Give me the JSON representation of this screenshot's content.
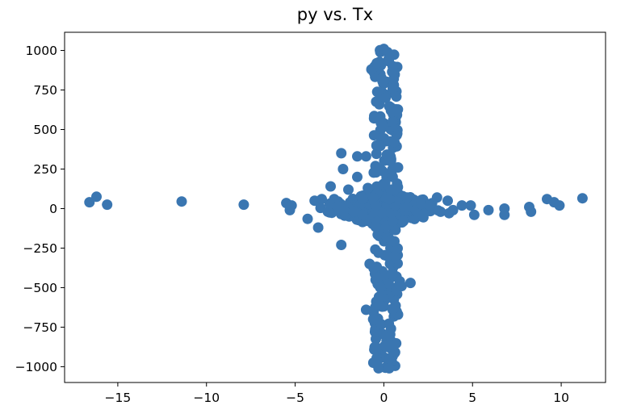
{
  "chart_data": {
    "type": "scatter",
    "title": "py vs. Tx",
    "xlabel": "",
    "ylabel": "",
    "xlim": [
      -18,
      12.5
    ],
    "ylim": [
      -1100,
      1115
    ],
    "x_ticks": [
      -15,
      -10,
      -5,
      0,
      5,
      10
    ],
    "x_tick_labels": [
      "−15",
      "−10",
      "−5",
      "0",
      "5",
      "10"
    ],
    "y_ticks": [
      1000,
      750,
      500,
      250,
      0,
      -250,
      -500,
      -750,
      -1000
    ],
    "y_tick_labels": [
      "1000",
      "750",
      "500",
      "250",
      "0",
      "−250",
      "−500",
      "−750",
      "−1000"
    ],
    "grid": false,
    "marker_color": "#3a76b1",
    "series": [
      {
        "points": [
          [
            -16.6,
            40
          ],
          [
            -16.2,
            75
          ],
          [
            -15.6,
            25
          ],
          [
            -11.4,
            45
          ],
          [
            -7.9,
            25
          ],
          [
            -5.5,
            35
          ],
          [
            -5.3,
            -10
          ],
          [
            -5.2,
            20
          ],
          [
            -4.3,
            -65
          ],
          [
            -3.9,
            50
          ],
          [
            -3.7,
            -120
          ],
          [
            -3.5,
            60
          ],
          [
            -3.0,
            140
          ],
          [
            -2.8,
            60
          ],
          [
            -2.6,
            15
          ],
          [
            -2.4,
            350
          ],
          [
            -2.4,
            -230
          ],
          [
            -2.3,
            250
          ],
          [
            -2.0,
            120
          ],
          [
            -1.5,
            330
          ],
          [
            -1.5,
            200
          ],
          [
            -1.2,
            -40
          ],
          [
            -1.0,
            330
          ],
          [
            -0.9,
            130
          ],
          [
            -0.8,
            -350
          ],
          [
            -1.0,
            -640
          ],
          [
            -0.6,
            -700
          ],
          [
            -0.5,
            -780
          ],
          [
            -0.4,
            -880
          ],
          [
            -0.4,
            -960
          ],
          [
            -0.3,
            -1010
          ],
          [
            -0.2,
            -500
          ],
          [
            -0.3,
            -280
          ],
          [
            -0.7,
            880
          ],
          [
            -0.4,
            920
          ],
          [
            -0.2,
            990
          ],
          [
            0.0,
            1010
          ],
          [
            0.2,
            990
          ],
          [
            0.3,
            950
          ],
          [
            0.5,
            900
          ],
          [
            0.5,
            760
          ],
          [
            0.4,
            620
          ],
          [
            0.5,
            550
          ],
          [
            0.6,
            420
          ],
          [
            0.4,
            300
          ],
          [
            0.5,
            200
          ],
          [
            0.4,
            120
          ],
          [
            0.3,
            60
          ],
          [
            0.5,
            -80
          ],
          [
            0.4,
            -200
          ],
          [
            0.6,
            -300
          ],
          [
            0.5,
            -420
          ],
          [
            0.7,
            -520
          ],
          [
            0.9,
            -460
          ],
          [
            0.5,
            -640
          ],
          [
            0.4,
            -760
          ],
          [
            0.3,
            -860
          ],
          [
            0.3,
            -950
          ],
          [
            0.3,
            -1010
          ],
          [
            1.0,
            -490
          ],
          [
            1.5,
            -470
          ],
          [
            1.1,
            -80
          ],
          [
            1.3,
            70
          ],
          [
            1.8,
            -10
          ],
          [
            2.1,
            30
          ],
          [
            2.2,
            -40
          ],
          [
            2.6,
            20
          ],
          [
            3.0,
            70
          ],
          [
            3.2,
            -20
          ],
          [
            3.6,
            50
          ],
          [
            3.9,
            -10
          ],
          [
            4.4,
            20
          ],
          [
            4.9,
            20
          ],
          [
            5.1,
            -40
          ],
          [
            5.9,
            -10
          ],
          [
            6.8,
            0
          ],
          [
            6.8,
            -40
          ],
          [
            8.2,
            10
          ],
          [
            8.3,
            -20
          ],
          [
            9.2,
            60
          ],
          [
            9.6,
            40
          ],
          [
            9.9,
            20
          ],
          [
            11.2,
            65
          ],
          [
            -0.1,
            -620
          ],
          [
            0.1,
            700
          ],
          [
            0.2,
            -300
          ],
          [
            -0.6,
            70
          ],
          [
            -1.7,
            -20
          ],
          [
            -0.2,
            250
          ],
          [
            0.8,
            260
          ]
        ],
        "core": [
          {
            "kind": "horizontal-cluster",
            "x_range": [
              -4.0,
              4.0
            ],
            "y_range": [
              -130,
              110
            ]
          },
          {
            "kind": "vertical-cluster",
            "x_range": [
              -0.6,
              0.8
            ],
            "y_range": [
              -1010,
              1010
            ]
          }
        ]
      }
    ]
  }
}
